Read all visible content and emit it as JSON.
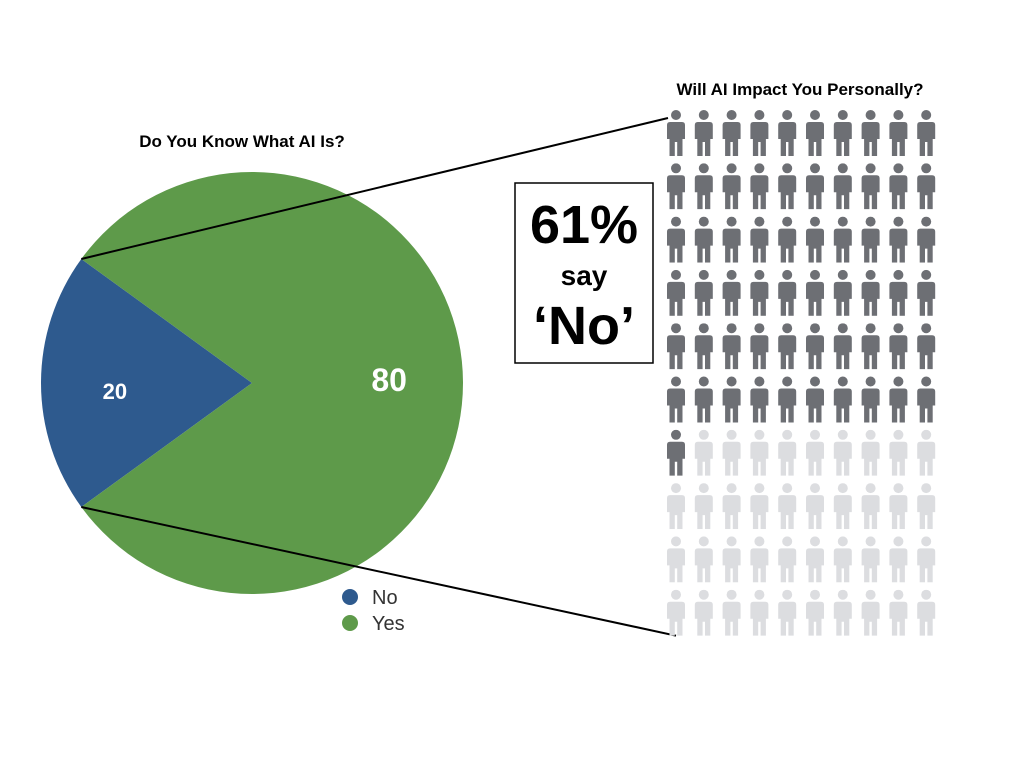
{
  "chart_data": [
    {
      "type": "pie",
      "title": "Do You Know What AI Is?",
      "categories": [
        "No",
        "Yes"
      ],
      "values": [
        20,
        80
      ],
      "colors": [
        "#2e5a8e",
        "#5e9a4a"
      ],
      "data_labels": [
        "20",
        "80"
      ],
      "legend": [
        {
          "label": "No",
          "color": "#2e5a8e"
        },
        {
          "label": "Yes",
          "color": "#5e9a4a"
        }
      ],
      "legend_position": "bottom-right"
    },
    {
      "type": "pictograph",
      "title": "Will AI Impact You Personally?",
      "total_icons": 100,
      "highlighted_icons": 61,
      "highlight_color": "#6d6f74",
      "base_color": "#dcdde0",
      "callout": {
        "percent": "61%",
        "say": "say",
        "answer": "‘No’"
      }
    }
  ]
}
